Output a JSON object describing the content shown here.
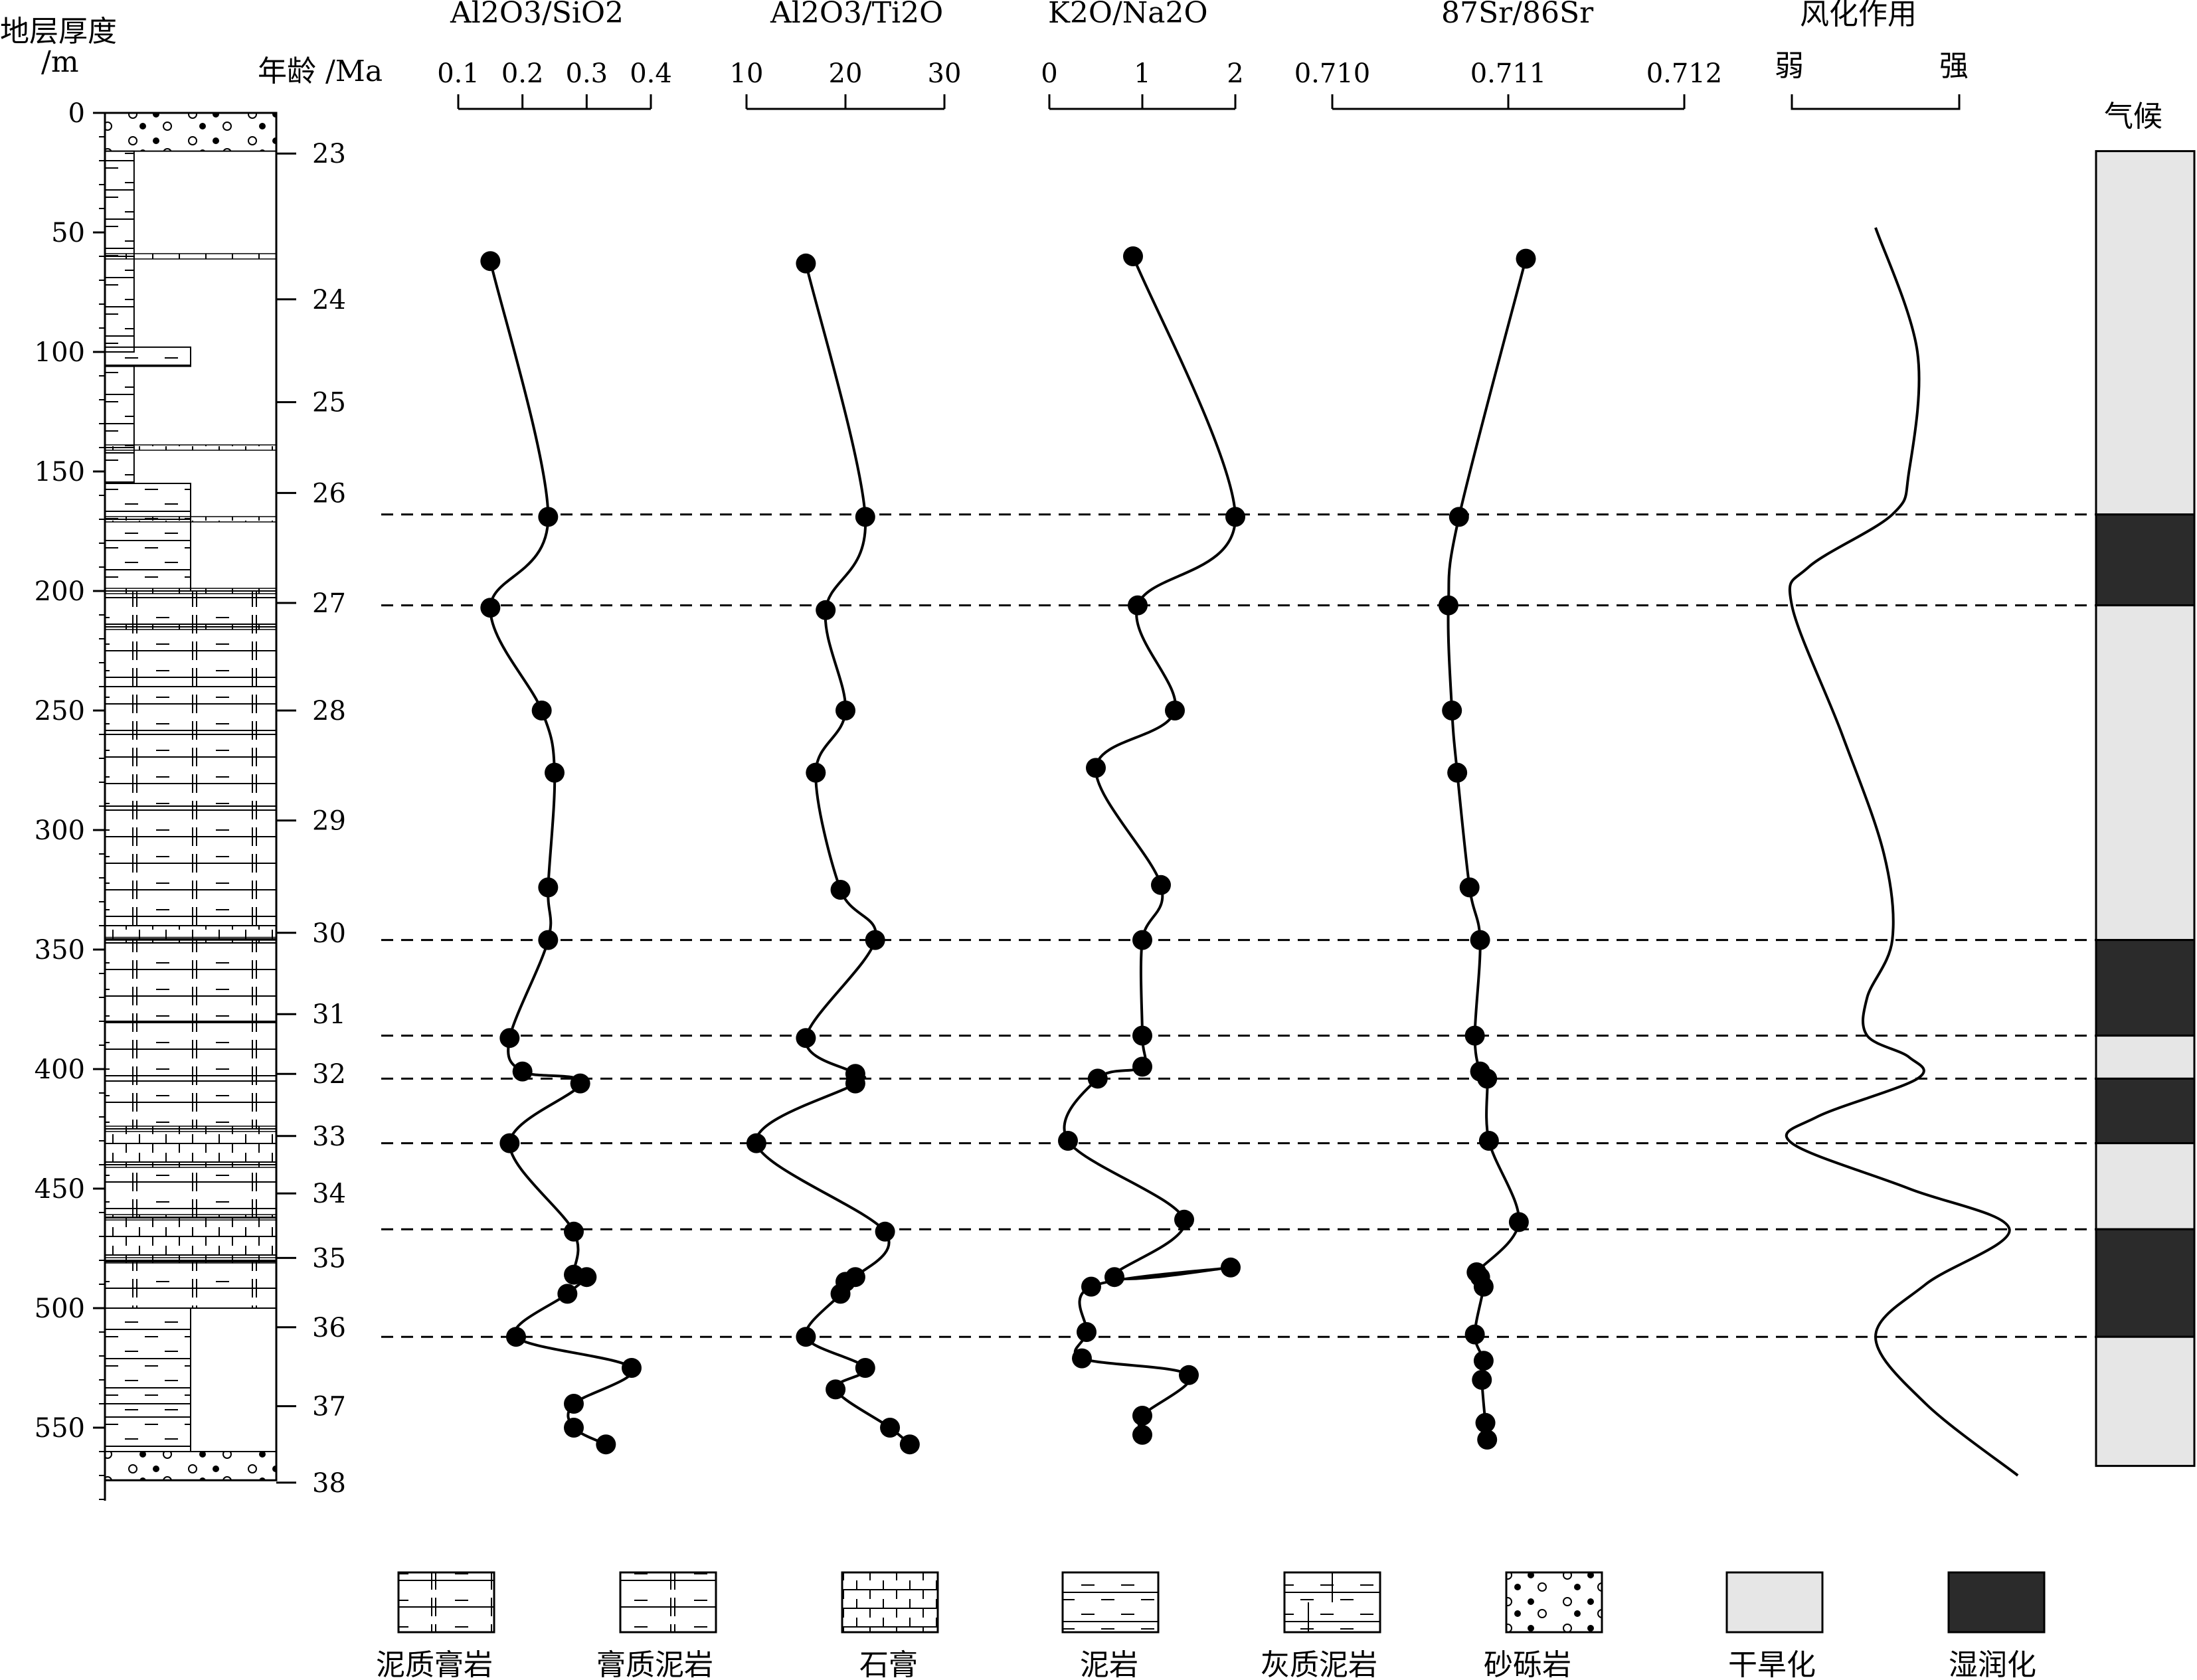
{
  "colors": {
    "ink": "#000000",
    "dry": "#e6e6e6",
    "wet": "#2b2b2b",
    "paper": "#ffffff"
  },
  "left_axis": {
    "label_line1": "地层厚度",
    "label_line2": "/m",
    "ticks": [
      "0",
      "50",
      "100",
      "150",
      "200",
      "250",
      "300",
      "350",
      "400",
      "450",
      "500",
      "550"
    ],
    "range": [
      0,
      580
    ]
  },
  "age_axis": {
    "label": "年龄 /Ma",
    "ticks": [
      "23",
      "24",
      "25",
      "26",
      "27",
      "28",
      "29",
      "30",
      "31",
      "32",
      "33",
      "34",
      "35",
      "36",
      "37",
      "38"
    ]
  },
  "panels": {
    "al_si": {
      "title": "Al2O3/SiO2",
      "ticks": [
        "0.1",
        "0.2",
        "0.3",
        "0.4"
      ],
      "range": [
        0.1,
        0.4
      ]
    },
    "al_ti": {
      "title": "Al2O3/Ti2O",
      "ticks": [
        "10",
        "20",
        "30"
      ],
      "range": [
        10,
        30
      ]
    },
    "k_na": {
      "title": "K2O/Na2O",
      "ticks": [
        "0",
        "1",
        "2"
      ],
      "range": [
        0,
        2
      ]
    },
    "sr": {
      "title": "87Sr/86Sr",
      "ticks": [
        "0.710",
        "0.711",
        "0.712"
      ],
      "range": [
        0.71,
        0.712
      ]
    },
    "weathering": {
      "title": "风化作用",
      "weak": "弱",
      "strong": "强"
    },
    "climate": {
      "title": "气候"
    }
  },
  "legend": [
    {
      "key": "mudstone_gypsum",
      "label": "泥质膏岩"
    },
    {
      "key": "gypsum_mudstone",
      "label": "膏质泥岩"
    },
    {
      "key": "gypsum",
      "label": "石膏"
    },
    {
      "key": "mudstone",
      "label": "泥岩"
    },
    {
      "key": "calc_mudstone",
      "label": "灰质泥岩"
    },
    {
      "key": "conglomerate",
      "label": "砂砾岩"
    },
    {
      "key": "dry",
      "label": "干旱化"
    },
    {
      "key": "wet",
      "label": "湿润化"
    }
  ],
  "chart_data": {
    "type": "line",
    "y_axis": "depth_m",
    "depth_range": [
      0,
      580
    ],
    "age_ticks_depth": {
      "23": 17,
      "24": 78,
      "25": 121,
      "26": 159,
      "27": 205,
      "28": 250,
      "29": 296,
      "30": 343,
      "31": 377,
      "32": 402,
      "33": 428,
      "34": 452,
      "35": 479,
      "36": 508,
      "37": 541,
      "38": 573
    },
    "boundaries_depth": [
      168,
      206,
      346,
      386,
      404,
      431,
      467,
      512
    ],
    "series": [
      {
        "name": "Al2O3/SiO2",
        "x": [
          0.15,
          0.24,
          0.15,
          0.23,
          0.25,
          0.24,
          0.24,
          0.18,
          0.2,
          0.29,
          0.18,
          0.28,
          0.28,
          0.3,
          0.27,
          0.19,
          0.37,
          0.28,
          0.28,
          0.33
        ],
        "depth": [
          62,
          169,
          207,
          250,
          276,
          324,
          346,
          387,
          401,
          406,
          431,
          468,
          486,
          487,
          494,
          512,
          525,
          540,
          550,
          557
        ]
      },
      {
        "name": "Al2O3/Ti2O",
        "x": [
          16,
          22,
          18,
          20,
          17,
          19.5,
          23,
          16,
          21,
          21,
          11,
          24,
          21,
          20,
          19.5,
          16,
          22,
          19,
          24.5,
          26.5
        ],
        "depth": [
          63,
          169,
          208,
          250,
          276,
          325,
          346,
          387,
          402,
          406,
          431,
          468,
          487,
          489,
          494,
          512,
          525,
          534,
          550,
          557
        ]
      },
      {
        "name": "K2O/Na2O",
        "x": [
          0.9,
          2.0,
          0.95,
          1.35,
          0.5,
          1.2,
          1.0,
          1.0,
          1.0,
          0.52,
          0.2,
          1.45,
          0.7,
          1.95,
          0.45,
          0.4,
          0.35,
          1.5,
          1.0,
          1.0
        ],
        "depth": [
          60,
          169,
          206,
          250,
          274,
          323,
          346,
          386,
          399,
          404,
          430,
          463,
          487,
          483,
          491,
          510,
          521,
          528,
          545,
          553
        ]
      },
      {
        "name": "87Sr/86Sr",
        "x": [
          0.7111,
          0.71072,
          0.71066,
          0.71068,
          0.71071,
          0.71078,
          0.71084,
          0.71081,
          0.71084,
          0.71088,
          0.71089,
          0.71106,
          0.71082,
          0.71084,
          0.71086,
          0.71081,
          0.71086,
          0.71085,
          0.71087,
          0.71088
        ],
        "depth": [
          61,
          169,
          206,
          250,
          276,
          324,
          346,
          386,
          401,
          404,
          430,
          464,
          485,
          487,
          491,
          511,
          522,
          530,
          548,
          555
        ]
      }
    ],
    "weathering_curve": {
      "scale": [
        0,
        1
      ],
      "depth": [
        48,
        100,
        150,
        168,
        190,
        206,
        260,
        310,
        346,
        370,
        386,
        395,
        404,
        420,
        431,
        450,
        467,
        490,
        512,
        540,
        570
      ],
      "x": [
        0.5,
        0.75,
        0.7,
        0.6,
        0.1,
        0.0,
        0.3,
        0.55,
        0.6,
        0.45,
        0.45,
        0.7,
        0.75,
        0.15,
        0.0,
        0.7,
        1.3,
        0.8,
        0.5,
        0.8,
        1.35
      ]
    },
    "climate": [
      {
        "from": 16,
        "to": 168,
        "type": "dry"
      },
      {
        "from": 168,
        "to": 206,
        "type": "wet"
      },
      {
        "from": 206,
        "to": 346,
        "type": "dry"
      },
      {
        "from": 346,
        "to": 386,
        "type": "wet"
      },
      {
        "from": 386,
        "to": 404,
        "type": "dry"
      },
      {
        "from": 404,
        "to": 431,
        "type": "wet"
      },
      {
        "from": 431,
        "to": 467,
        "type": "dry"
      },
      {
        "from": 467,
        "to": 512,
        "type": "wet"
      },
      {
        "from": 512,
        "to": 566,
        "type": "dry"
      }
    ]
  }
}
